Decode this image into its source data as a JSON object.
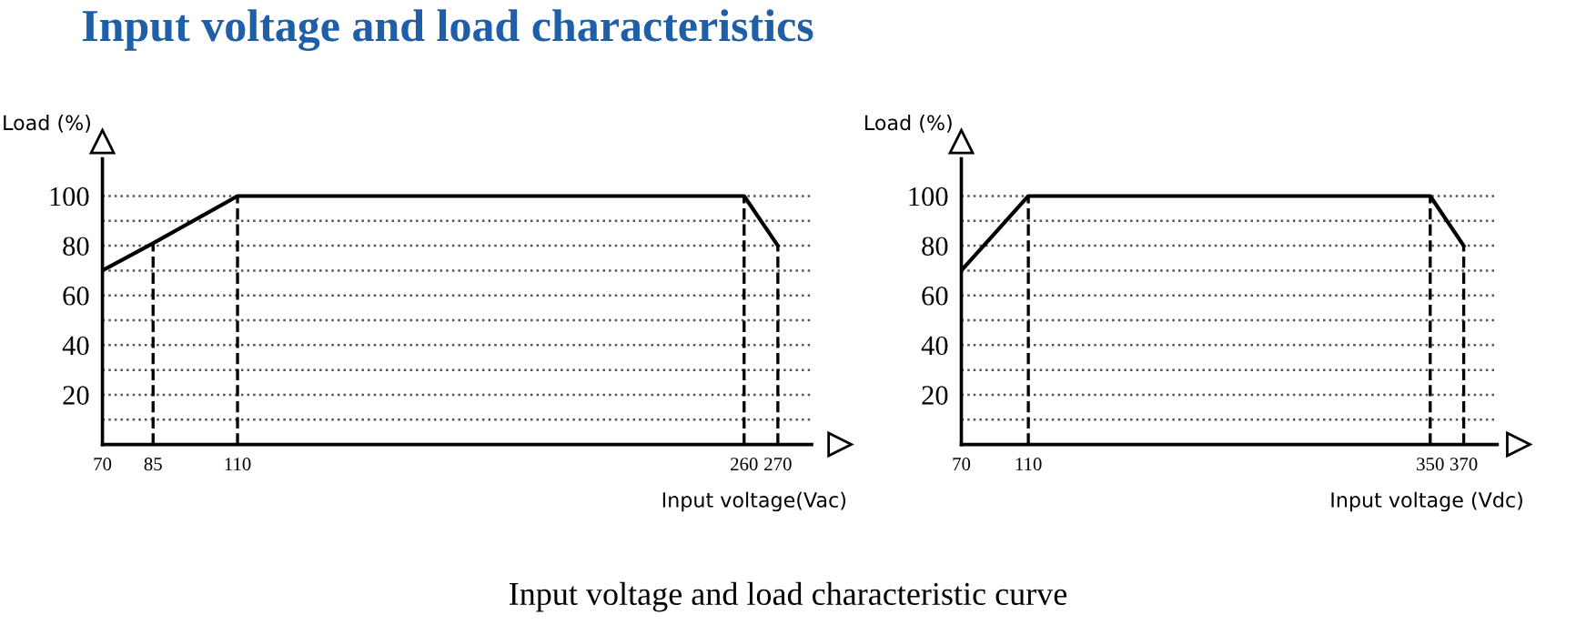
{
  "chart_data": [
    {
      "type": "line",
      "title": "Input voltage and load characteristics",
      "ylabel": "Load (%)",
      "xlabel": "Input voltage(Vac)",
      "x": [
        70,
        85,
        110,
        260,
        270
      ],
      "series": [
        {
          "color": "#000000",
          "values": [
            70,
            81,
            100,
            100,
            80
          ]
        }
      ],
      "xlim": [
        70,
        280
      ],
      "xticks": [
        70,
        85,
        110,
        260,
        270
      ],
      "ylim": [
        0,
        115
      ],
      "yticks": [
        {
          "value": 10,
          "label": null
        },
        20,
        {
          "value": 30,
          "label": null
        },
        40,
        {
          "value": 50,
          "label": null
        },
        60,
        {
          "value": 70,
          "label": null
        },
        80,
        {
          "value": 90,
          "label": null
        },
        100
      ],
      "grid": "y",
      "line_style": "solid",
      "marker": "none",
      "ref_lines": [
        {
          "axis": "x",
          "value": 85,
          "label": null,
          "line_style": "dashed"
        },
        {
          "axis": "x",
          "value": 110,
          "label": null,
          "line_style": "dashed"
        },
        {
          "axis": "x",
          "value": 260,
          "label": null,
          "line_style": "dashed"
        },
        {
          "axis": "x",
          "value": 270,
          "label": null,
          "line_style": "dashed"
        }
      ]
    },
    {
      "type": "line",
      "ylabel": "Load (%)",
      "xlabel": "Input voltage (Vdc)",
      "x": [
        70,
        110,
        350,
        370
      ],
      "series": [
        {
          "color": "#000000",
          "values": [
            70,
            100,
            100,
            80
          ]
        }
      ],
      "xlim": [
        70,
        390
      ],
      "xticks": [
        70,
        110,
        350,
        370
      ],
      "ylim": [
        0,
        115
      ],
      "yticks": [
        {
          "value": 10,
          "label": null
        },
        20,
        {
          "value": 30,
          "label": null
        },
        40,
        {
          "value": 50,
          "label": null
        },
        60,
        {
          "value": 70,
          "label": null
        },
        80,
        {
          "value": 90,
          "label": null
        },
        100
      ],
      "grid": "y",
      "line_style": "solid",
      "marker": "none",
      "ref_lines": [
        {
          "axis": "x",
          "value": 110,
          "label": null,
          "line_style": "dashed"
        },
        {
          "axis": "x",
          "value": 350,
          "label": null,
          "line_style": "dashed"
        },
        {
          "axis": "x",
          "value": 370,
          "label": null,
          "line_style": "dashed"
        }
      ],
      "annotations": [
        "Input voltage and load characteristic curve"
      ]
    }
  ]
}
